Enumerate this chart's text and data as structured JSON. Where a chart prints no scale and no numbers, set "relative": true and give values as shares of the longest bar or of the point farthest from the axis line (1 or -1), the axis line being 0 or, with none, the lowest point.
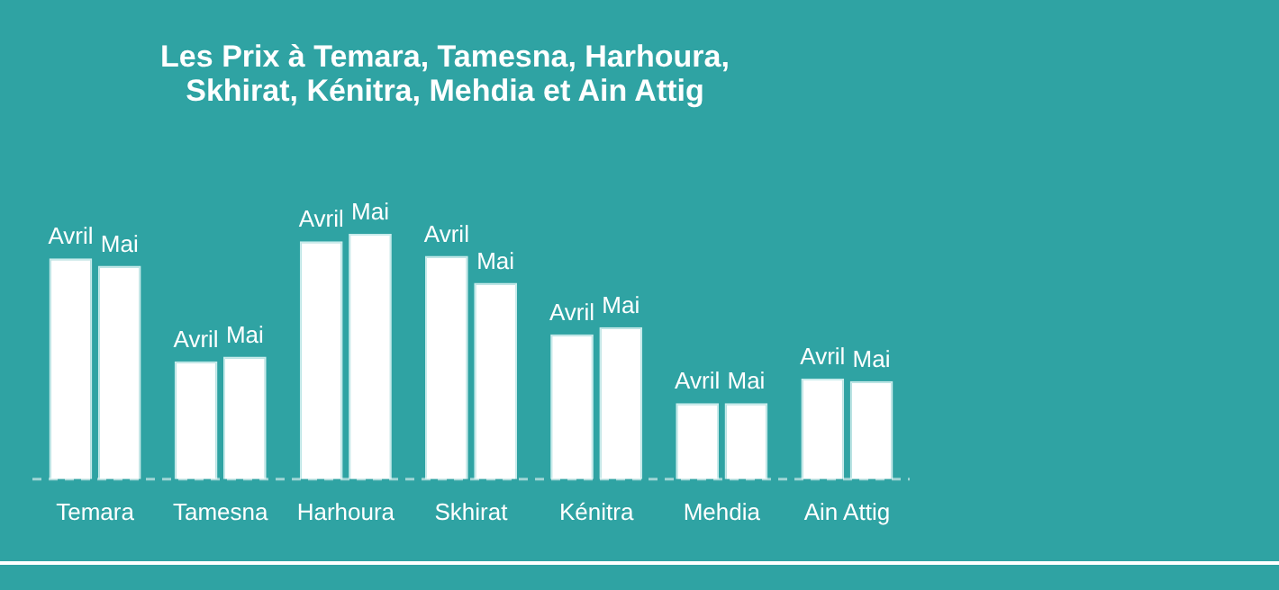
{
  "chart_data": {
    "type": "bar",
    "title": "Les Prix à Temara, Tamesna, Harhoura, Skhirat, Kénitra, Mehdia et Ain Attig",
    "relative": true,
    "grid": false,
    "legend": false,
    "categories": [
      "Temara",
      "Tamesna",
      "Harhoura",
      "Skhirat",
      "Kénitra",
      "Mehdia",
      "Ain Attig"
    ],
    "series": [
      {
        "name": "Avril",
        "color": "#ffffff",
        "values": [
          0.9,
          0.48,
          0.97,
          0.91,
          0.59,
          0.31,
          0.41
        ]
      },
      {
        "name": "Mai",
        "color": "#ffffff",
        "values": [
          0.87,
          0.5,
          1,
          0.8,
          0.62,
          0.31,
          0.4
        ]
      }
    ]
  }
}
